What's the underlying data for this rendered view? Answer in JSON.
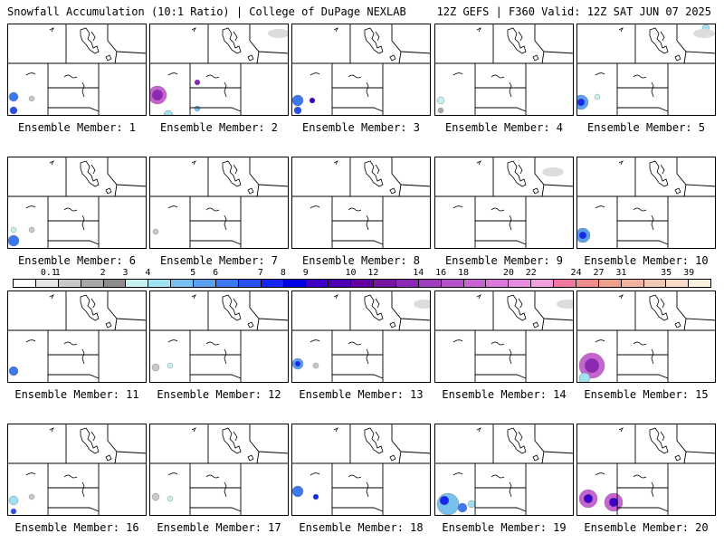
{
  "header": {
    "title": "Snowfall Accumulation (10:1 Ratio) | College of DuPage NEXLAB",
    "run_info": "12Z GEFS | F360 Valid: 12Z SAT JUN 07 2025"
  },
  "colorbar": {
    "labels": [
      "0.1",
      "1",
      "2",
      "3",
      "4",
      "5",
      "6",
      "7",
      "8",
      "9",
      "10",
      "12",
      "14",
      "16",
      "18",
      "20",
      "22",
      "24",
      "27",
      "31",
      "35",
      "39"
    ],
    "colors": [
      "#ffffff",
      "#e6e6e6",
      "#c8c8c8",
      "#a8a8a8",
      "#8c8c8c",
      "#c8f0f0",
      "#a0e0f0",
      "#78c0f0",
      "#5aa0f0",
      "#3c78f0",
      "#2850f0",
      "#1428f0",
      "#0000e6",
      "#3c00c8",
      "#5000b4",
      "#6400a0",
      "#7814a0",
      "#8c28b4",
      "#a03cbe",
      "#b450c8",
      "#c864d2",
      "#dc78dc",
      "#e68cdc",
      "#f0a0dc",
      "#f078a0",
      "#f08c8c",
      "#f0a08c",
      "#f0b4a0",
      "#f0c8b4",
      "#f8dcc8",
      "#fceedc"
    ]
  },
  "members": [
    {
      "label": "Ensemble Member: 1"
    },
    {
      "label": "Ensemble Member: 2"
    },
    {
      "label": "Ensemble Member: 3"
    },
    {
      "label": "Ensemble Member: 4"
    },
    {
      "label": "Ensemble Member: 5"
    },
    {
      "label": "Ensemble Member: 6"
    },
    {
      "label": "Ensemble Member: 7"
    },
    {
      "label": "Ensemble Member: 8"
    },
    {
      "label": "Ensemble Member: 9"
    },
    {
      "label": "Ensemble Member: 10"
    },
    {
      "label": "Ensemble Member: 11"
    },
    {
      "label": "Ensemble Member: 12"
    },
    {
      "label": "Ensemble Member: 13"
    },
    {
      "label": "Ensemble Member: 14"
    },
    {
      "label": "Ensemble Member: 15"
    },
    {
      "label": "Ensemble Member: 16"
    },
    {
      "label": "Ensemble Member: 17"
    },
    {
      "label": "Ensemble Member: 18"
    },
    {
      "label": "Ensemble Member: 19"
    },
    {
      "label": "Ensemble Member: 20"
    }
  ]
}
